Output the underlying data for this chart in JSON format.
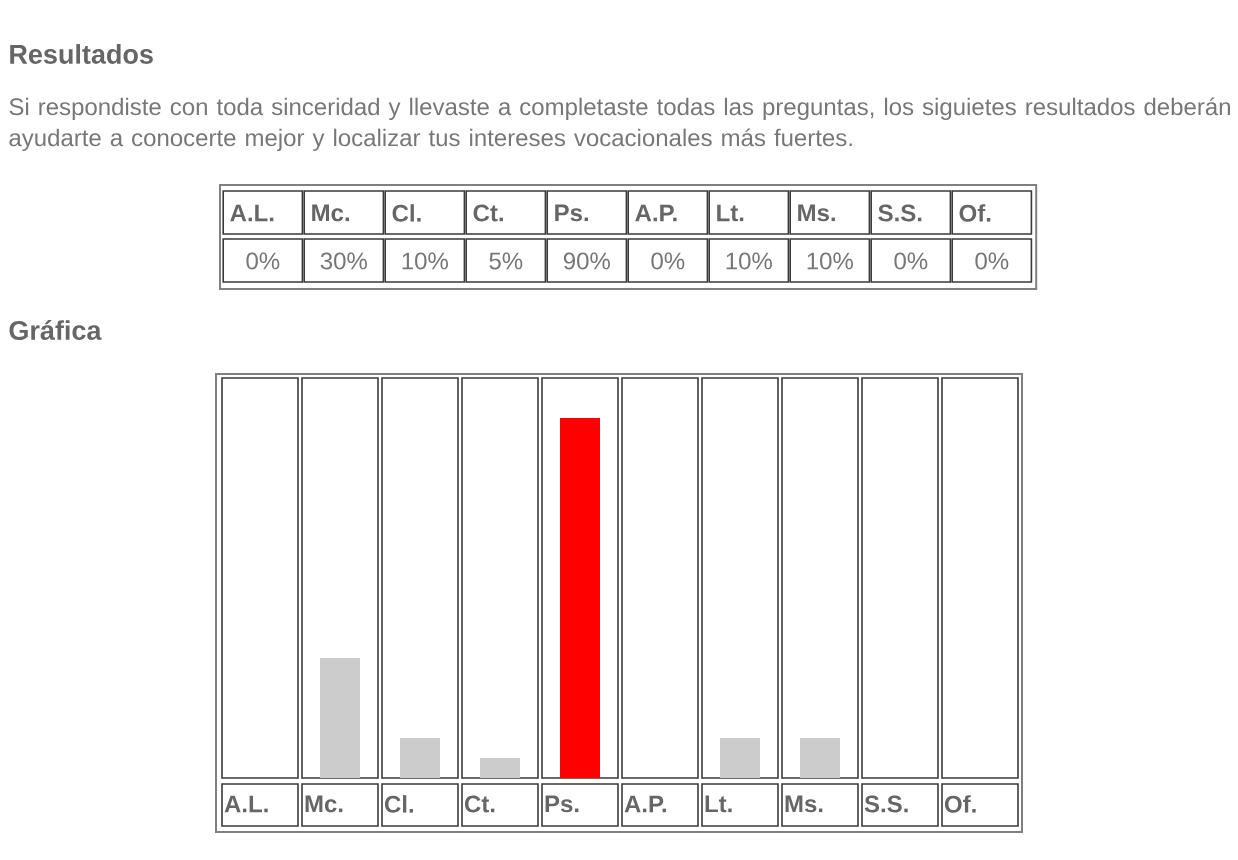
{
  "chart_data": {
    "type": "bar",
    "title": "Resultados",
    "subtitle": "Si respondiste con toda sinceridad y llevaste a completaste todas las preguntas, los siguietes resultados deberán ayudarte a conocerte mejor y localizar tus intereses vocacionales más fuertes.",
    "annotations": [
      "Gráfica"
    ],
    "categories": [
      "A.L.",
      "Mc.",
      "Cl.",
      "Ct.",
      "Ps.",
      "A.P.",
      "Lt.",
      "Ms.",
      "S.S.",
      "Of."
    ],
    "series": [
      {
        "color": "#ffffff",
        "values": [
          100,
          100,
          100,
          100,
          100,
          100,
          100,
          100,
          100,
          100
        ]
      },
      {
        "values": [
          0,
          30,
          10,
          5,
          90,
          0,
          10,
          10,
          0,
          0
        ],
        "colors": [
          "#cccccc",
          "#cccccc",
          "#cccccc",
          "#cccccc",
          "#ff0000",
          "#cccccc",
          "#cccccc",
          "#cccccc",
          "#cccccc",
          "#cccccc"
        ],
        "value_labels": [
          "0%",
          "30%",
          "10%",
          "5%",
          "90%",
          "0%",
          "10%",
          "10%",
          "0%",
          "0%"
        ]
      }
    ],
    "ylim": [
      0,
      100
    ],
    "tick_labels": "x"
  }
}
